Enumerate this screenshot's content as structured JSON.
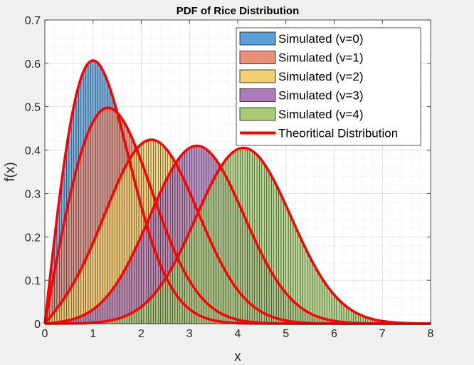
{
  "chart_data": {
    "type": "bar",
    "title": "PDF of Rice Distribution",
    "xlabel": "x",
    "ylabel": "f(x)",
    "xlim": [
      0,
      8
    ],
    "ylim": [
      0,
      0.7
    ],
    "xticks": [
      "0",
      "1",
      "2",
      "3",
      "4",
      "5",
      "6",
      "7",
      "8"
    ],
    "yticks": [
      "0",
      "0.1",
      "0.2",
      "0.3",
      "0.4",
      "0.5",
      "0.6",
      "0.7"
    ],
    "grid": true,
    "minor_grid": true,
    "legend_position": "top-right",
    "bin_width": 0.05,
    "series": [
      {
        "name": "Simulated (v=0)",
        "type": "histogram",
        "nu": 0,
        "sigma": 1,
        "color": "#5aa0d6"
      },
      {
        "name": "Simulated (v=1)",
        "type": "histogram",
        "nu": 1,
        "sigma": 1,
        "color": "#e8907a"
      },
      {
        "name": "Simulated (v=2)",
        "type": "histogram",
        "nu": 2,
        "sigma": 1,
        "color": "#f2cf70"
      },
      {
        "name": "Simulated (v=3)",
        "type": "histogram",
        "nu": 3,
        "sigma": 1,
        "color": "#ad7bbb"
      },
      {
        "name": "Simulated (v=4)",
        "type": "histogram",
        "nu": 4,
        "sigma": 1,
        "color": "#a6cc78"
      },
      {
        "name": "Theoritical Distribution",
        "type": "line",
        "color": "#ff0000"
      }
    ],
    "theory_peaks": [
      {
        "nu": 0,
        "x": 1.0,
        "y": 0.607
      },
      {
        "nu": 1,
        "x": 1.32,
        "y": 0.5
      },
      {
        "nu": 2,
        "x": 2.22,
        "y": 0.425
      },
      {
        "nu": 3,
        "x": 3.17,
        "y": 0.411
      },
      {
        "nu": 4,
        "x": 4.13,
        "y": 0.406
      }
    ]
  }
}
